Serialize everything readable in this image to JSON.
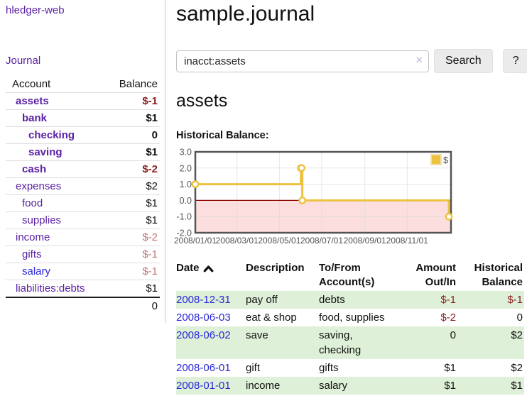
{
  "brand": "hledger-web",
  "nav": {
    "journal": "Journal"
  },
  "sidebar": {
    "account_header": "Account",
    "balance_header": "Balance",
    "rows": [
      {
        "name": "assets",
        "balance": "$-1",
        "indent": 1,
        "bold": true
      },
      {
        "name": "bank",
        "balance": "$1",
        "indent": 2,
        "bold": true
      },
      {
        "name": "checking",
        "balance": "0",
        "indent": 3,
        "bold": true
      },
      {
        "name": "saving",
        "balance": "$1",
        "indent": 3,
        "bold": true
      },
      {
        "name": "cash",
        "balance": "$-2",
        "indent": 2,
        "bold": true
      },
      {
        "name": "expenses",
        "balance": "$2",
        "indent": 1,
        "bold": false
      },
      {
        "name": "food",
        "balance": "$1",
        "indent": 2,
        "bold": false
      },
      {
        "name": "supplies",
        "balance": "$1",
        "indent": 2,
        "bold": false
      },
      {
        "name": "income",
        "balance": "$-2",
        "indent": 1,
        "bold": false
      },
      {
        "name": "gifts",
        "balance": "$-1",
        "indent": 2,
        "bold": false
      },
      {
        "name": "salary",
        "balance": "$-1",
        "indent": 2,
        "bold": false,
        "unvisited": true
      },
      {
        "name": "liabilities:debts",
        "balance": "$1",
        "indent": 1,
        "bold": false
      }
    ],
    "total": "0"
  },
  "header": {
    "title": "sample.journal"
  },
  "search": {
    "value": "inacct:assets",
    "clear_icon": "×",
    "search_button": "Search",
    "help_button": "?"
  },
  "account_view": {
    "heading": "assets",
    "chart_title": "Historical Balance:"
  },
  "chart_data": {
    "type": "line",
    "step": true,
    "title": "Historical Balance",
    "legend": [
      {
        "label": "$",
        "color": "#edc240"
      }
    ],
    "legend_position": "top-right",
    "grid": true,
    "x_tick_labels": [
      "2008/01/01",
      "2008/03/01",
      "2008/05/01",
      "2008/07/01",
      "2008/09/01",
      "2008/11/01"
    ],
    "x_tick_days": [
      0,
      60,
      121,
      182,
      244,
      305
    ],
    "x_range_days": [
      0,
      365
    ],
    "y_ticks": [
      3.0,
      2.0,
      1.0,
      0.0,
      -1.0,
      -2.0
    ],
    "ylim": [
      -2.0,
      3.0
    ],
    "series": [
      {
        "name": "$",
        "color": "#edc240",
        "points": [
          {
            "date": "2008-01-01",
            "day": 0,
            "value": 1
          },
          {
            "date": "2008-06-01",
            "day": 152,
            "value": 2
          },
          {
            "date": "2008-06-02",
            "day": 153,
            "value": 2
          },
          {
            "date": "2008-06-03",
            "day": 154,
            "value": 0
          },
          {
            "date": "2008-12-31",
            "day": 365,
            "value": -1
          }
        ]
      }
    ],
    "negative_region_color": "#fcdede",
    "zero_line_color": "#8b0000",
    "axis_color": "#545454",
    "gridline_color": "#d9d9d9"
  },
  "register": {
    "columns": {
      "date": "Date",
      "description": "Description",
      "accounts": "To/From Account(s)",
      "amount": "Amount Out/In",
      "balance": "Historical Balance"
    },
    "sort_icon": "chevron-up",
    "rows": [
      {
        "date": "2008-12-31",
        "description": "pay off",
        "accounts": "debts",
        "amount": "$-1",
        "balance": "$-1"
      },
      {
        "date": "2008-06-03",
        "description": "eat & shop",
        "accounts": "food, supplies",
        "amount": "$-2",
        "balance": "0"
      },
      {
        "date": "2008-06-02",
        "description": "save",
        "accounts": "saving, checking",
        "amount": "0",
        "balance": "$2"
      },
      {
        "date": "2008-06-01",
        "description": "gift",
        "accounts": "gifts",
        "amount": "$1",
        "balance": "$2"
      },
      {
        "date": "2008-01-01",
        "description": "income",
        "accounts": "salary",
        "amount": "$1",
        "balance": "$1"
      }
    ]
  }
}
